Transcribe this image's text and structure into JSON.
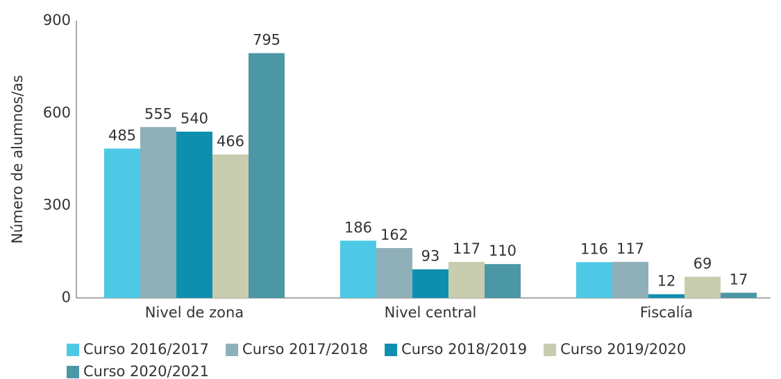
{
  "chart_data": {
    "type": "bar",
    "y_label": "Número de alumnos/as",
    "categories": [
      "Nivel de zona",
      "Nivel central",
      "Fiscalía"
    ],
    "series": [
      {
        "name": "Curso 2016/2017",
        "color": "#4dc9e6",
        "values": [
          485,
          186,
          116
        ]
      },
      {
        "name": "Curso 2017/2018",
        "color": "#8fb0b8",
        "values": [
          555,
          162,
          117
        ]
      },
      {
        "name": "Curso 2018/2019",
        "color": "#0e8fb0",
        "values": [
          540,
          93,
          12
        ]
      },
      {
        "name": "Curso 2019/2020",
        "color": "#c9cdb0",
        "values": [
          466,
          117,
          69
        ]
      },
      {
        "name": "Curso 2020/2021",
        "color": "#4c97a6",
        "values": [
          795,
          110,
          17
        ]
      }
    ],
    "ylim": [
      0,
      900
    ],
    "yticks": [
      0,
      300,
      600,
      900
    ],
    "grid": false,
    "legend": "bottom"
  }
}
